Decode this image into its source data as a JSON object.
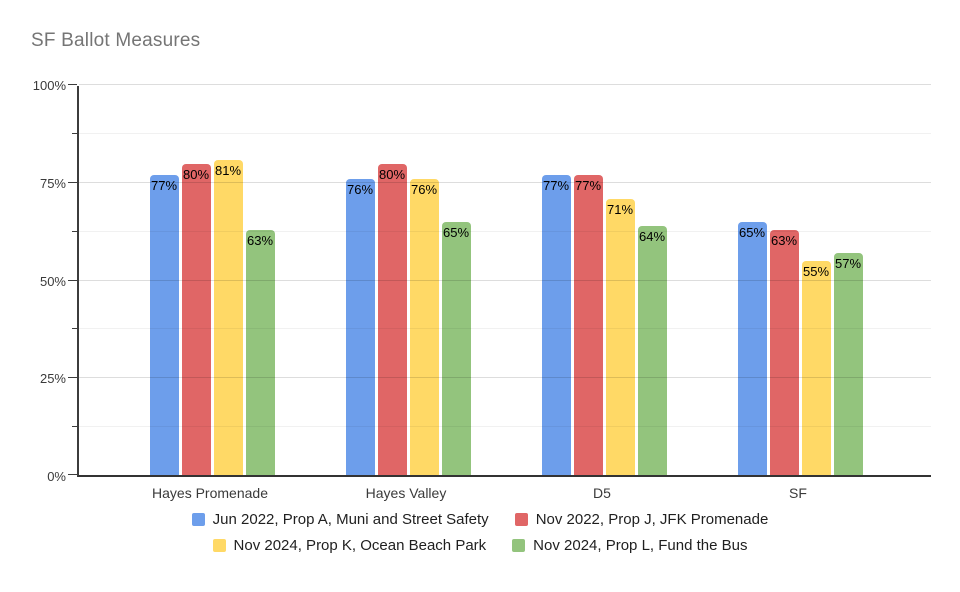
{
  "title": "SF Ballot Measures",
  "chart_data": {
    "type": "bar",
    "title": "SF Ballot Measures",
    "categories": [
      "Hayes Promenade",
      "Hayes Valley",
      "D5",
      "SF"
    ],
    "series": [
      {
        "name": "Jun 2022, Prop A, Muni and Street Safety",
        "color": "#6d9eeb",
        "values": [
          77,
          76,
          77,
          65
        ]
      },
      {
        "name": "Nov 2022, Prop J, JFK Promenade",
        "color": "#e06666",
        "values": [
          80,
          80,
          77,
          63
        ]
      },
      {
        "name": "Nov 2024, Prop K, Ocean Beach Park",
        "color": "#ffd966",
        "values": [
          81,
          76,
          71,
          55
        ]
      },
      {
        "name": "Nov 2024, Prop L, Fund the Bus",
        "color": "#93c47d",
        "values": [
          63,
          65,
          64,
          57
        ]
      }
    ],
    "value_label_suffix": "%",
    "ylabel": "",
    "xlabel": "",
    "ylim": [
      0,
      100
    ],
    "ytick_labels": [
      "0%",
      "25%",
      "50%",
      "75%",
      "100%"
    ],
    "ytick_values": [
      0,
      25,
      50,
      75,
      100
    ],
    "minor_tick_values": [
      12.5,
      37.5,
      62.5,
      87.5
    ],
    "grid": true,
    "legend_position": "bottom"
  }
}
